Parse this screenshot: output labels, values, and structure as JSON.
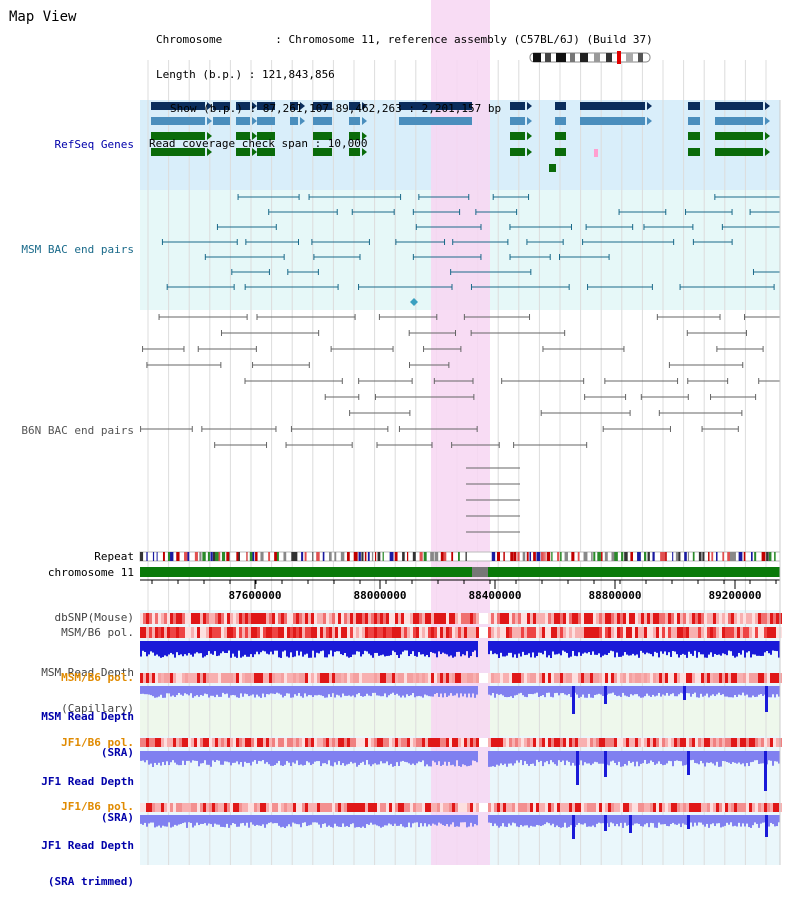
{
  "page": {
    "title": "Map View"
  },
  "info": {
    "chromosome_line": "Chromosome        : Chromosome 11, reference assembly (C57BL/6J) (Build 37)",
    "length_line": "Length (b.p.) : 121,843,856",
    "show_line": "Show (b.p.) : 87,261,107-89,462,263 : 2,201,157 bp",
    "span_line": "Read coverage check span : 10,000"
  },
  "tracks": {
    "refseq": "RefSeq Genes",
    "msm_bac": "MSM BAC end pairs",
    "b6n_bac": "B6N BAC end pairs",
    "repeat": "Repeat",
    "chromosome": "chromosome 11",
    "dbsnp": "dbSNP(Mouse)",
    "msm_b6_pol": "MSM/B6 pol.",
    "msm_depth_cap_1": "MSM Read Depth",
    "msm_depth_cap_2": "(Capillary)",
    "msm_b6_pol2": "MSM/B6 pol.",
    "msm_depth_sra_1": "MSM Read Depth",
    "msm_depth_sra_2": "(SRA)",
    "jf1_b6_pol": "JF1/B6 pol.",
    "jf1_depth_sra_1": "JF1 Read Depth",
    "jf1_depth_sra_2": "(SRA)",
    "jf1_b6_pol2": "JF1/B6 pol.",
    "jf1_depth_trim_1": "JF1 Read Depth",
    "jf1_depth_trim_2": "(SRA trimmed)"
  },
  "axis": {
    "ticks": [
      "87600000",
      "88000000",
      "88400000",
      "88800000",
      "89200000"
    ]
  },
  "colors": {
    "gene_dark": "#0b2d5c",
    "gene_mid": "#4a8ebd",
    "gene_green": "#0a6b0a",
    "msm_pair": "#1a6a8a",
    "b6n_pair": "#666666",
    "highlight": "#f7d6f2",
    "refseq_bg": "#d9eefa",
    "msm_bg": "#e6f8f8",
    "label_blue": "#0000aa",
    "label_orange": "#e08a00",
    "chrom_green": "#0a7a0a",
    "depth_blue": "#1a1ad8",
    "depth_light": "#8080f0"
  }
}
